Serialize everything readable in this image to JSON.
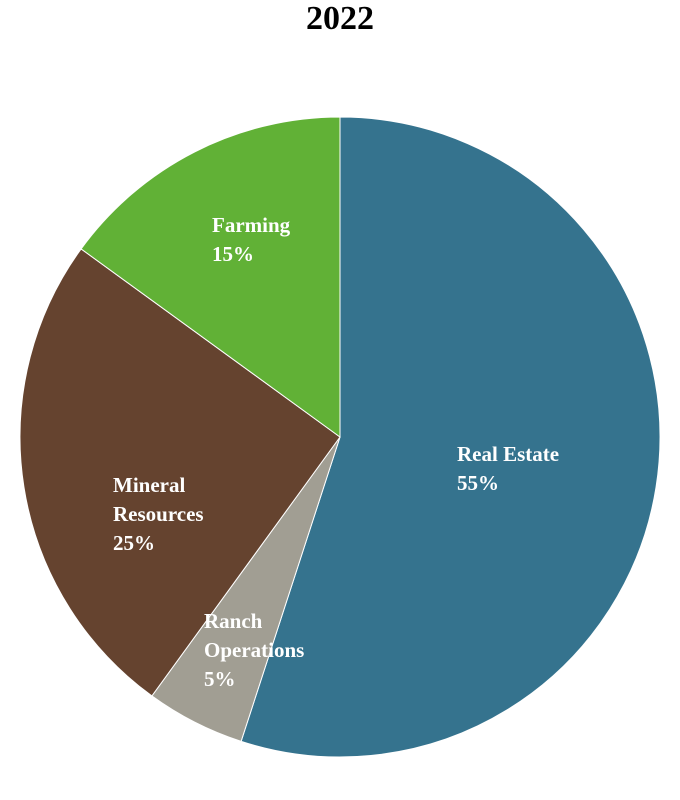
{
  "chart_data": {
    "type": "pie",
    "title": "2022",
    "start_angle_deg": 0,
    "direction": "clockwise",
    "slices": [
      {
        "name": "Real Estate",
        "label_lines": [
          "Real Estate"
        ],
        "value": 55,
        "percent_label": "55%",
        "color": "#35738e"
      },
      {
        "name": "Ranch Operations",
        "label_lines": [
          "Ranch",
          "Operations"
        ],
        "value": 5,
        "percent_label": "5%",
        "color": "#a19e93"
      },
      {
        "name": "Mineral Resources",
        "label_lines": [
          "Mineral",
          "Resources"
        ],
        "value": 25,
        "percent_label": "25%",
        "color": "#65432f"
      },
      {
        "name": "Farming",
        "label_lines": [
          "Farming"
        ],
        "value": 15,
        "percent_label": "15%",
        "color": "#61b136"
      }
    ]
  }
}
